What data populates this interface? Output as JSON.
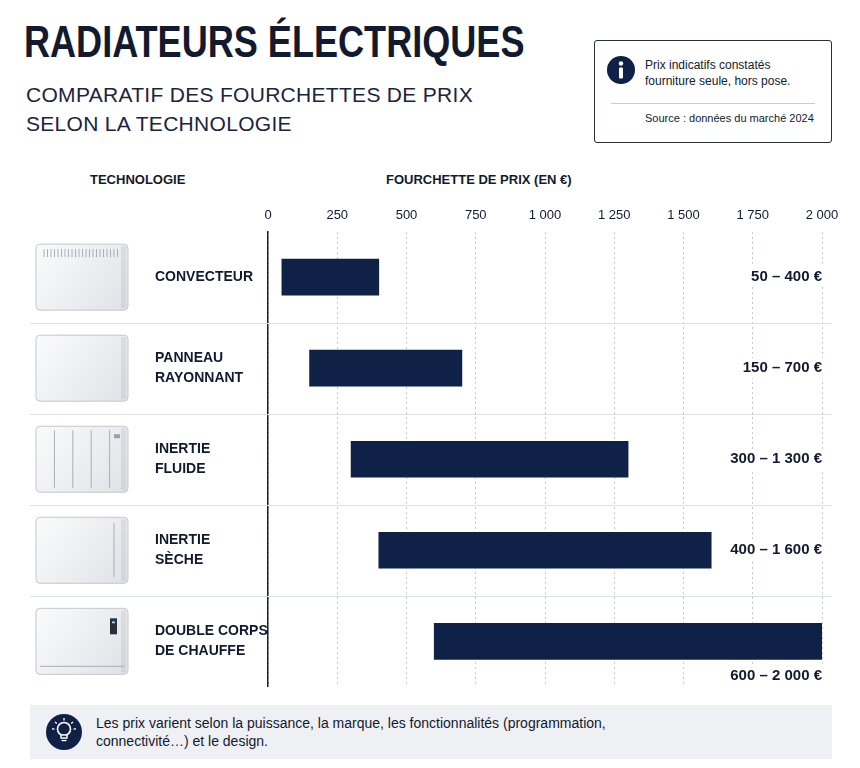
{
  "chart_data": {
    "type": "bar",
    "orientation": "horizontal",
    "title": "RADIATEURS ÉLECTRIQUES",
    "subtitle": "COMPARATIF DES FOURCHETTES DE PRIX SELON LA TECHNOLOGIE",
    "ylabel": "TECHNOLOGIE",
    "xlabel": "FOURCHETTE DE PRIX (EN €)",
    "categories": [
      "CONVECTEUR",
      "PANNEAU RAYONNANT",
      "INERTIE FLUIDE",
      "INERTIE SÈCHE",
      "DOUBLE CORPS DE CHAUFFE"
    ],
    "values": [
      [
        50,
        400
      ],
      [
        150,
        700
      ],
      [
        300,
        1300
      ],
      [
        400,
        1600
      ],
      [
        600,
        2000
      ]
    ],
    "value_labels": [
      "50 – 400 €",
      "150 – 700 €",
      "300 – 1 300 €",
      "400 – 1 600 €",
      "600 – 2 000 €"
    ],
    "data_labels": true,
    "color": "#0f2147",
    "xlim": [
      0,
      2000
    ],
    "xticks": [
      0,
      250,
      500,
      750,
      {
        "value": 1000,
        "label": "1 000"
      },
      {
        "value": 1250,
        "label": "1 250"
      },
      {
        "value": 1500,
        "label": "1 500"
      },
      {
        "value": 1750,
        "label": "1 750"
      },
      {
        "value": 2000,
        "label": "2 000"
      }
    ],
    "grid": true,
    "annotations": {
      "info": "Prix indicatifs constatés fourniture seule, hors pose.",
      "source": "Source : données du marché 2024",
      "note": "Les prix varient selon la puissance, la marque, les fonctionnalités (programmation, connectivité…) et le design."
    }
  }
}
